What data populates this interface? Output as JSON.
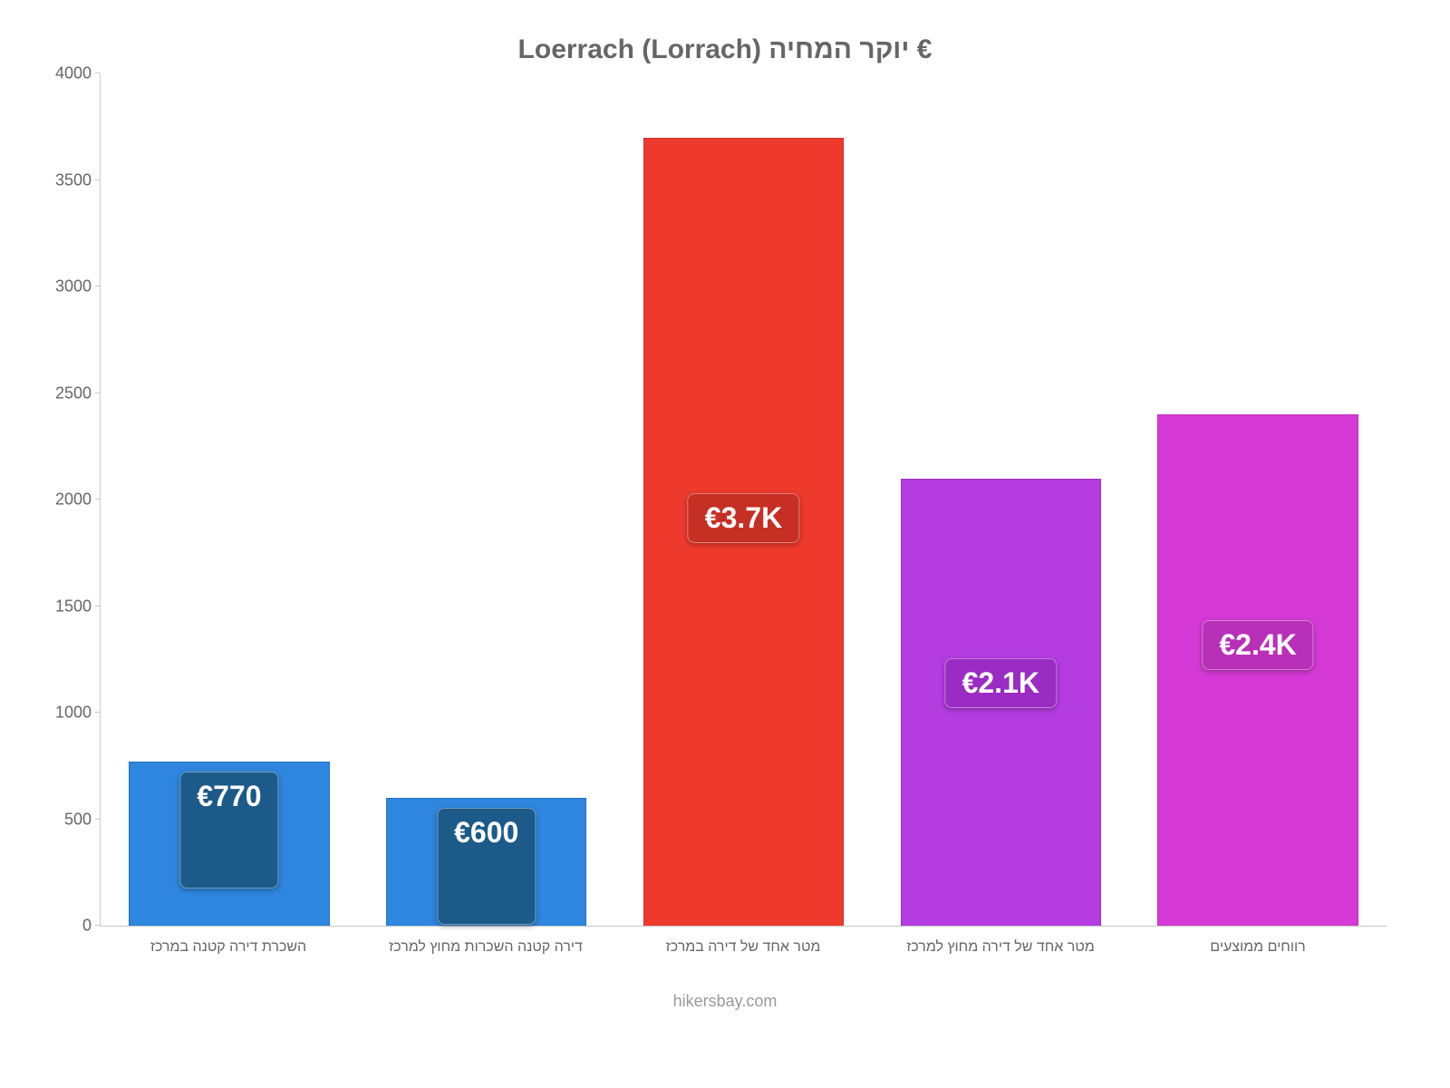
{
  "chart": {
    "type": "bar",
    "title": "Loerrach (Lorrach) יוקר המחיה €",
    "title_fontsize": 30,
    "title_color": "#666666",
    "background_color": "#ffffff",
    "axis_color": "#c9c9c9",
    "label_color": "#666666",
    "xlabel_fontsize": 16,
    "ytick_fontsize": 18,
    "ylim": [
      0,
      4000
    ],
    "ytick_step": 500,
    "bar_width": 0.78,
    "badge_fontsize": 32,
    "categories": [
      "השכרת דירה קטנה במרכז",
      "דירה קטנה השכרות מחוץ למרכז",
      "מטר אחד של דירה במרכז",
      "מטר אחד של דירה מחוץ למרכז",
      "רווחים ממוצעים"
    ],
    "values": [
      770,
      600,
      3700,
      2100,
      2400
    ],
    "display_values": [
      "€770",
      "€600",
      "€3.7K",
      "€2.1K",
      "€2.4K"
    ],
    "bar_colors": [
      "#2e86de",
      "#2e86de",
      "#ee3a2c",
      "#b43ce0",
      "#d63ad6"
    ],
    "badge_colors": [
      "#1c5a8a",
      "#1c5a8a",
      "#c62f23",
      "#9a2cc3",
      "#b82fb8"
    ],
    "attribution": "hikersbay.com",
    "attribution_color": "#999999"
  }
}
